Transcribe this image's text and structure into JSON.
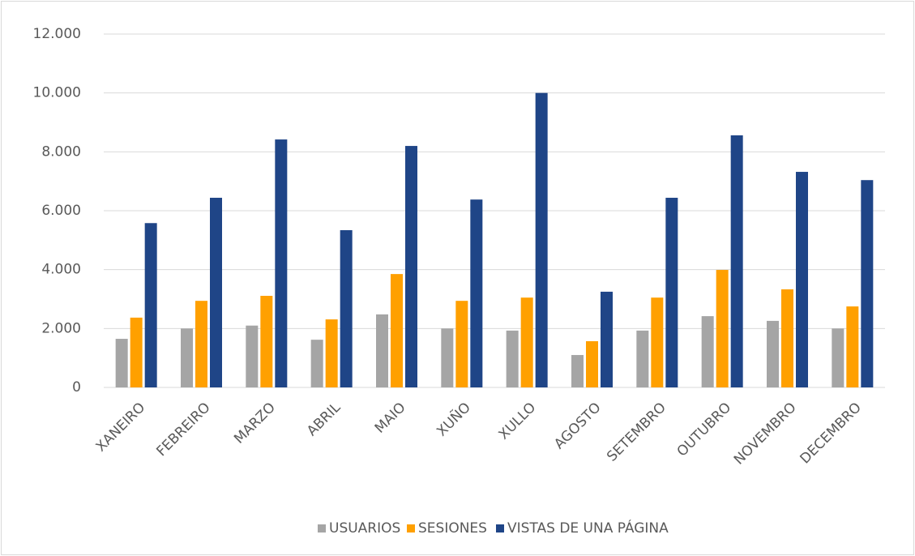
{
  "chart_data": {
    "type": "bar",
    "categories": [
      "XANEIRO",
      "FEBREIRO",
      "MARZO",
      "ABRIL",
      "MAIO",
      "XUÑO",
      "XULLO",
      "AGOSTO",
      "SETEMBRO",
      "OUTUBRO",
      "NOVEMBRO",
      "DECEMBRO"
    ],
    "series": [
      {
        "name": "USUARIOS",
        "color": "#a5a5a5",
        "values": [
          1650,
          2000,
          2100,
          1620,
          2480,
          2000,
          1930,
          1100,
          1930,
          2420,
          2260,
          2000
        ]
      },
      {
        "name": "SESIONES",
        "color": "#ffa000",
        "values": [
          2370,
          2940,
          3110,
          2310,
          3850,
          2940,
          3050,
          1570,
          3050,
          3990,
          3330,
          2750
        ]
      },
      {
        "name": "VISTAS DE UNA PÁGINA",
        "color": "#1f4587",
        "values": [
          5580,
          6440,
          8420,
          5340,
          8200,
          6380,
          10000,
          3250,
          6440,
          8560,
          7320,
          7040
        ]
      }
    ],
    "ylim": [
      0,
      12000
    ],
    "yticks": [
      0,
      {
        "value": 2000,
        "label": "2.000"
      },
      {
        "value": 4000,
        "label": "4.000"
      },
      {
        "value": 6000,
        "label": "6.000"
      },
      {
        "value": 8000,
        "label": "8.000"
      },
      {
        "value": 10000,
        "label": "10.000"
      },
      {
        "value": 12000,
        "label": "12.000"
      }
    ],
    "grid": true,
    "legend": "bottom"
  }
}
